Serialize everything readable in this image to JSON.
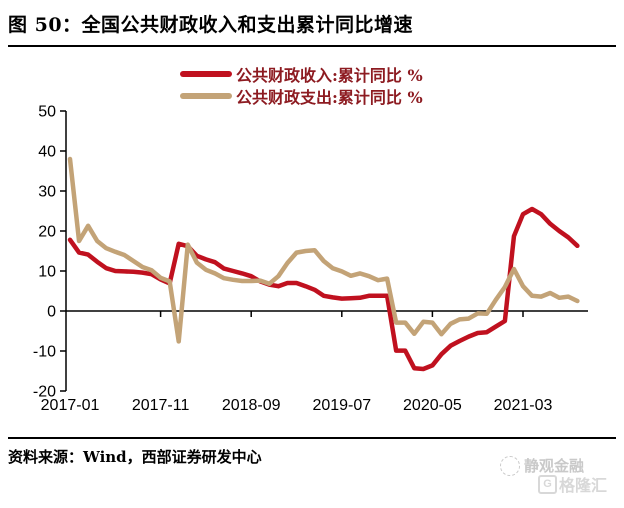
{
  "title": "图 50：全国公共财政收入和支出累计同比增速",
  "legend": [
    {
      "label": "公共财政收入:累计同比 %",
      "color": "#c0111f"
    },
    {
      "label": "公共财政支出:累计同比 %",
      "color": "#c3a377"
    }
  ],
  "footer": {
    "source": "资料来源：Wind，西部证券研发中心"
  },
  "watermarks": {
    "top": "静观金融",
    "bottom": "格隆汇",
    "g_letter": "G"
  },
  "chart_data": {
    "type": "line",
    "title": "全国公共财政收入和支出累计同比增速",
    "xlabel": "",
    "ylabel": "%",
    "ylim": [
      -20,
      50
    ],
    "y_ticks": [
      50,
      40,
      30,
      20,
      10,
      0,
      -10,
      -20
    ],
    "x_tick_labels": [
      "2017-01",
      "2017-11",
      "2018-09",
      "2019-07",
      "2020-05",
      "2021-03"
    ],
    "x_tick_indices": [
      0,
      10,
      20,
      30,
      40,
      50
    ],
    "grid": false,
    "legend_position": "top",
    "x": [
      "2017-01",
      "2017-02",
      "2017-03",
      "2017-04",
      "2017-05",
      "2017-06",
      "2017-07",
      "2017-08",
      "2017-09",
      "2017-10",
      "2017-11",
      "2017-12",
      "2018-01",
      "2018-02",
      "2018-03",
      "2018-04",
      "2018-05",
      "2018-06",
      "2018-07",
      "2018-08",
      "2018-09",
      "2018-10",
      "2018-11",
      "2018-12",
      "2019-01",
      "2019-02",
      "2019-03",
      "2019-04",
      "2019-05",
      "2019-06",
      "2019-07",
      "2019-08",
      "2019-09",
      "2019-10",
      "2019-11",
      "2019-12",
      "2020-01",
      "2020-02",
      "2020-03",
      "2020-04",
      "2020-05",
      "2020-06",
      "2020-07",
      "2020-08",
      "2020-09",
      "2020-10",
      "2020-11",
      "2020-12",
      "2021-01",
      "2021-02",
      "2021-03",
      "2021-04",
      "2021-05",
      "2021-06",
      "2021-07",
      "2021-08",
      "2021-09"
    ],
    "series": [
      {
        "name": "公共财政收入:累计同比 %",
        "color": "#c0111f",
        "values": [
          17.8,
          14.6,
          14.1,
          12.3,
          10.7,
          10.0,
          9.9,
          9.8,
          9.6,
          9.2,
          7.9,
          6.9,
          16.8,
          16.2,
          13.8,
          12.9,
          12.2,
          10.6,
          10.0,
          9.4,
          8.7,
          7.4,
          6.6,
          6.2,
          7.0,
          7.0,
          6.2,
          5.3,
          3.8,
          3.4,
          3.1,
          3.2,
          3.3,
          3.8,
          3.8,
          3.8,
          -9.9,
          -9.9,
          -14.3,
          -14.5,
          -13.6,
          -10.8,
          -8.7,
          -7.5,
          -6.4,
          -5.5,
          -5.3,
          -3.9,
          -2.5,
          18.7,
          24.2,
          25.5,
          24.2,
          21.8,
          20.0,
          18.4,
          16.3
        ]
      },
      {
        "name": "公共财政支出:累计同比 %",
        "color": "#c3a377",
        "values": [
          38.0,
          17.5,
          21.3,
          17.5,
          15.7,
          14.8,
          14.0,
          12.5,
          11.0,
          10.2,
          8.3,
          7.4,
          -7.6,
          16.6,
          12.1,
          10.3,
          9.4,
          8.2,
          7.8,
          7.5,
          7.5,
          7.6,
          6.8,
          8.7,
          12.0,
          14.6,
          15.0,
          15.2,
          12.5,
          10.7,
          9.9,
          8.8,
          9.4,
          8.7,
          7.7,
          8.1,
          -2.9,
          -2.9,
          -5.7,
          -2.7,
          -2.9,
          -5.8,
          -3.2,
          -2.1,
          -1.9,
          -0.6,
          -0.7,
          2.8,
          6.0,
          10.5,
          6.2,
          3.8,
          3.6,
          4.5,
          3.3,
          3.6,
          2.5
        ]
      }
    ]
  }
}
